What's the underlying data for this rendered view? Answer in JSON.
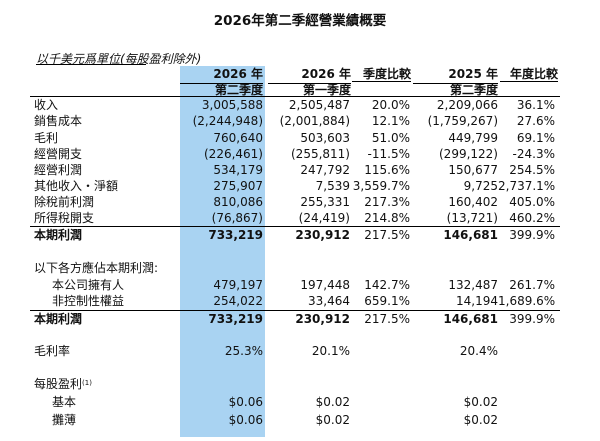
{
  "title": "2026年第二季經營業績概要",
  "unit_note": "以千美元爲單位(每股盈利除外)",
  "headers": {
    "c1_line1": "2026 年",
    "c1_line2": "第二季度",
    "c2_line1": "2026 年",
    "c2_line2": "第一季度",
    "c3": "季度比較",
    "c4_line1": "2025 年",
    "c4_line2": "第二季度",
    "c5": "年度比較"
  },
  "rows": [
    {
      "label": "收入",
      "v": [
        "3,005,588",
        "2,505,487",
        "20.0%",
        "2,209,066",
        "36.1%"
      ]
    },
    {
      "label": "銷售成本",
      "v": [
        "(2,244,948)",
        "(2,001,884)",
        "12.1%",
        "(1,759,267)",
        "27.6%"
      ]
    },
    {
      "label": "毛利",
      "v": [
        "760,640",
        "503,603",
        "51.0%",
        "449,799",
        "69.1%"
      ]
    },
    {
      "label": "經營開支",
      "v": [
        "(226,461)",
        "(255,811)",
        "-11.5%",
        "(299,122)",
        "-24.3%"
      ]
    },
    {
      "label": "經營利潤",
      "v": [
        "534,179",
        "247,792",
        "115.6%",
        "150,677",
        "254.5%"
      ]
    },
    {
      "label": "其他收入・淨額",
      "v": [
        "275,907",
        "7,539",
        "3,559.7%",
        "9,725",
        "2,737.1%"
      ]
    },
    {
      "label": "除稅前利潤",
      "v": [
        "810,086",
        "255,331",
        "217.3%",
        "160,402",
        "405.0%"
      ]
    },
    {
      "label": "所得稅開支",
      "v": [
        "(76,867)",
        "(24,419)",
        "214.8%",
        "(13,721)",
        "460.2%"
      ]
    },
    {
      "label": "本期利潤",
      "v": [
        "733,219",
        "230,912",
        "217.5%",
        "146,681",
        "399.9%"
      ]
    },
    {
      "label": "以下各方應佔本期利潤:"
    },
    {
      "label": "本公司擁有人",
      "v": [
        "479,197",
        "197,448",
        "142.7%",
        "132,487",
        "261.7%"
      ]
    },
    {
      "label": "非控制性權益",
      "v": [
        "254,022",
        "33,464",
        "659.1%",
        "14,194",
        "1,689.6%"
      ]
    },
    {
      "label": "本期利潤",
      "v": [
        "733,219",
        "230,912",
        "217.5%",
        "146,681",
        "399.9%"
      ]
    },
    {
      "label": "毛利率",
      "v": [
        "25.3%",
        "20.1%",
        "",
        "20.4%",
        ""
      ]
    },
    {
      "label": "每股盈利",
      "sup": "(1)"
    },
    {
      "label": "基本",
      "v": [
        "$0.06",
        "$0.02",
        "",
        "$0.02",
        ""
      ]
    },
    {
      "label": "攤薄",
      "v": [
        "$0.06",
        "$0.02",
        "",
        "$0.02",
        ""
      ]
    }
  ]
}
